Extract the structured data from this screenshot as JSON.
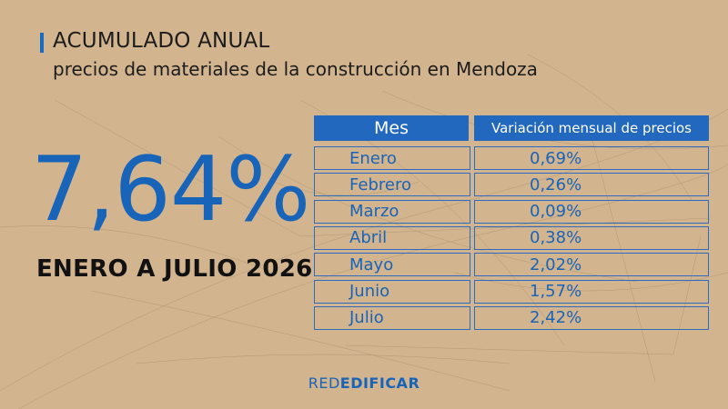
{
  "header": {
    "title": "ACUMULADO ANUAL",
    "subtitle": "precios de materiales de la construcción en Mendoza"
  },
  "summary": {
    "value": "7,64%",
    "period": "ENERO A JULIO 2026"
  },
  "table": {
    "col_month": "Mes",
    "col_variation": "Variación mensual de precios"
  },
  "brand": {
    "part1": "RED",
    "part2": "EDIFICAR"
  },
  "colors": {
    "background": "#d2b48f",
    "accent": "#1864b8",
    "text": "#111111"
  },
  "chart_data": {
    "type": "table",
    "columns": [
      "Mes",
      "Variación mensual de precios"
    ],
    "rows": [
      {
        "month": "Enero",
        "value": 0.69,
        "label": "0,69%"
      },
      {
        "month": "Febrero",
        "value": 0.26,
        "label": "0,26%"
      },
      {
        "month": "Marzo",
        "value": 0.09,
        "label": "0,09%"
      },
      {
        "month": "Abril",
        "value": 0.38,
        "label": "0,38%"
      },
      {
        "month": "Mayo",
        "value": 2.02,
        "label": "2,02%"
      },
      {
        "month": "Junio",
        "value": 1.57,
        "label": "1,57%"
      },
      {
        "month": "Julio",
        "value": 2.42,
        "label": "2,42%"
      }
    ]
  }
}
